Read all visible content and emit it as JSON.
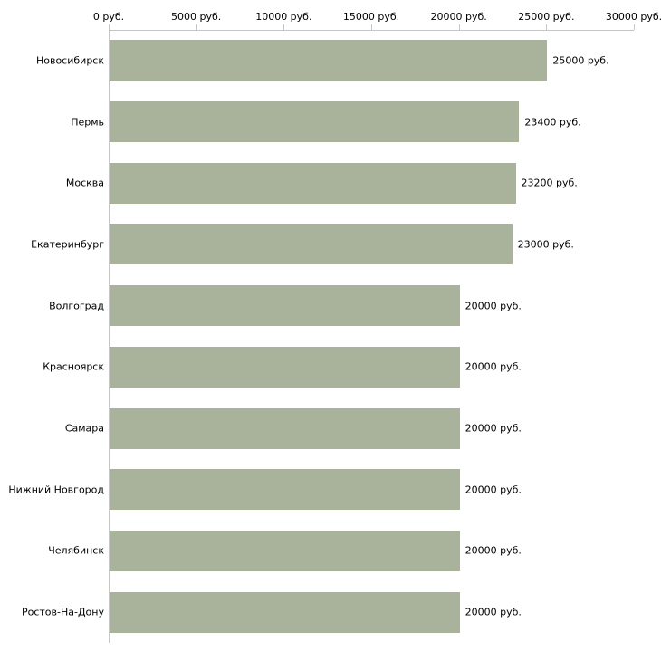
{
  "chart_data": {
    "type": "bar",
    "orientation": "horizontal",
    "title": "",
    "xlabel": "",
    "ylabel": "",
    "xlim": [
      0,
      30000
    ],
    "grid": false,
    "legend": "none",
    "bar_color": "#a9b29b",
    "axis_color": "#c6c6c6",
    "text_color": "#000000",
    "x_ticks": [
      0,
      5000,
      10000,
      15000,
      20000,
      25000,
      30000
    ],
    "x_tick_labels": [
      "0 руб.",
      "5000 руб.",
      "10000 руб.",
      "15000 руб.",
      "20000 руб.",
      "25000 руб.",
      "30000 руб."
    ],
    "categories": [
      "Новосибирск",
      "Пермь",
      "Москва",
      "Екатеринбург",
      "Волгоград",
      "Красноярск",
      "Самара",
      "Нижний Новгород",
      "Челябинск",
      "Ростов-На-Дону"
    ],
    "values": [
      25000,
      23400,
      23200,
      23000,
      20000,
      20000,
      20000,
      20000,
      20000,
      20000
    ],
    "value_labels": [
      "25000 руб.",
      "23400 руб.",
      "23200 руб.",
      "23000 руб.",
      "20000 руб.",
      "20000 руб.",
      "20000 руб.",
      "20000 руб.",
      "20000 руб.",
      "20000 руб."
    ]
  }
}
